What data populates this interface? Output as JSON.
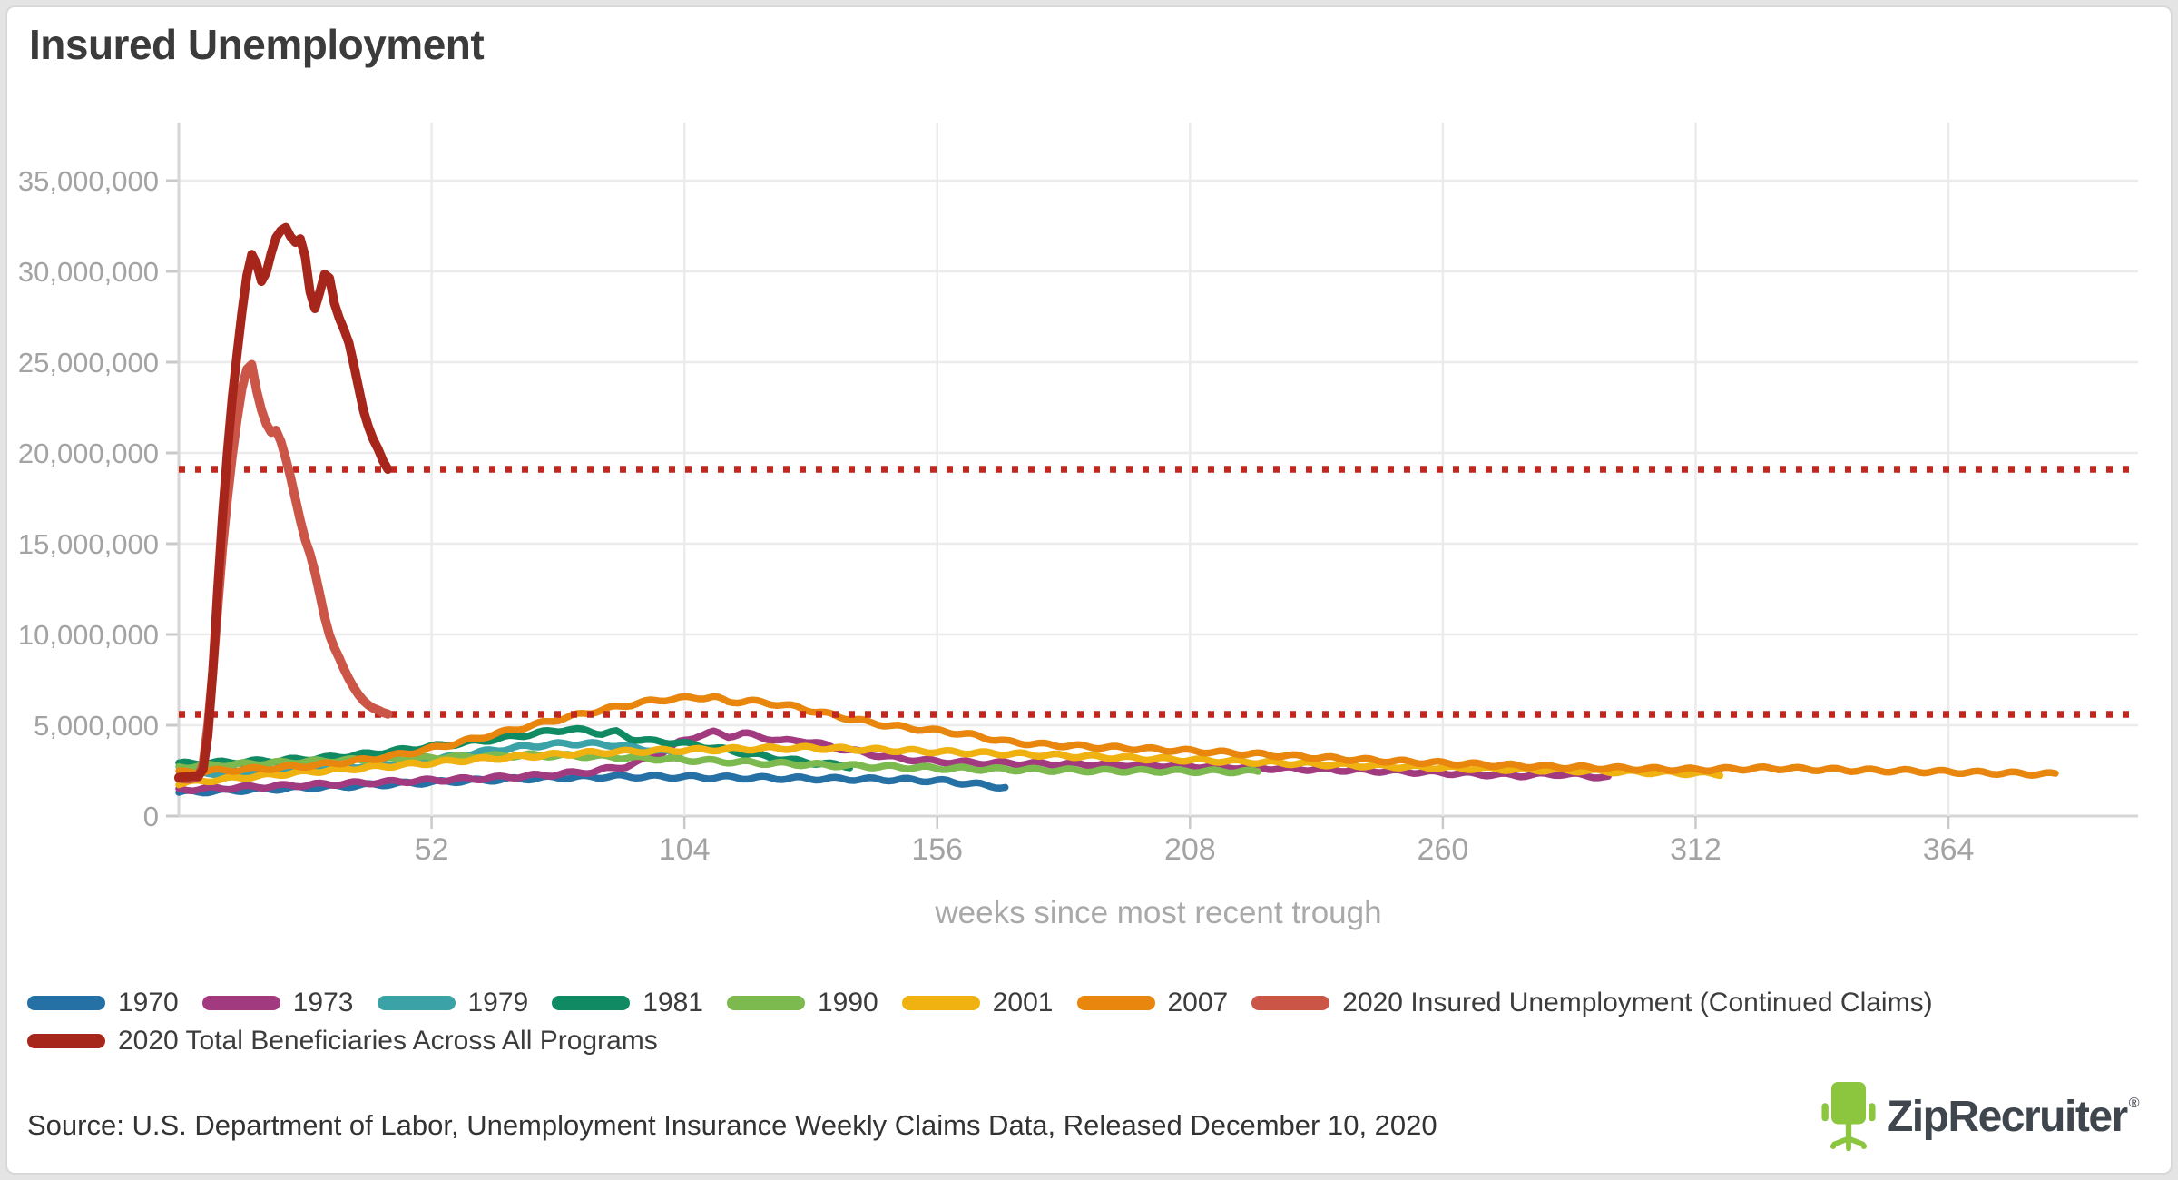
{
  "page": {
    "title": "Insured Unemployment"
  },
  "footer": {
    "source": "Source: U.S. Department of Labor, Unemployment Insurance Weekly Claims Data, Released December 10, 2020"
  },
  "branding": {
    "name": "ZipRecruiter",
    "registered": "®",
    "chair_color": "#8cc63e",
    "text_color": "#3f464d"
  },
  "colors": {
    "grid": "#ebebeb",
    "axis": "#d6d6d6",
    "tick": "#c9c9c9",
    "tick_label": "#a3a3a3",
    "reference_line": "#c2271f"
  },
  "legend": {
    "rows": [
      [
        {
          "label": "1970",
          "color": "#2571a5"
        },
        {
          "label": "1973",
          "color": "#a23a80"
        },
        {
          "label": "1979",
          "color": "#3ba3a8"
        },
        {
          "label": "1981",
          "color": "#108a62"
        },
        {
          "label": "1990",
          "color": "#7cb94e"
        },
        {
          "label": "2001",
          "color": "#efb211"
        },
        {
          "label": "2007",
          "color": "#e8860d"
        },
        {
          "label": "2020 Insured Unemployment (Continued Claims)",
          "color": "#cb5546"
        }
      ],
      [
        {
          "label": "2020 Total Beneficiaries Across All Programs",
          "color": "#a7261c"
        }
      ]
    ]
  },
  "chart_data": {
    "type": "line",
    "title": "Insured Unemployment",
    "xlabel": "weeks since most recent trough",
    "ylabel": "",
    "values_unit": "persons (millions)",
    "xlim": [
      0,
      403
    ],
    "ylim_millions": [
      0,
      38.2
    ],
    "x_ticks": [
      "52",
      "104",
      "156",
      "208",
      "260",
      "312",
      "364"
    ],
    "y_ticks": [
      {
        "v": 0,
        "label": "0"
      },
      {
        "v": 5,
        "label": "5,000,000"
      },
      {
        "v": 10,
        "label": "10,000,000"
      },
      {
        "v": 15,
        "label": "15,000,000"
      },
      {
        "v": 20,
        "label": "20,000,000"
      },
      {
        "v": 25,
        "label": "25,000,000"
      },
      {
        "v": 30,
        "label": "30,000,000"
      },
      {
        "v": 35,
        "label": "35,000,000"
      }
    ],
    "reference_lines_millions": [
      {
        "value": 19.1,
        "color": "#c2271f"
      },
      {
        "value": 5.6,
        "color": "#c2271f"
      }
    ],
    "series": [
      {
        "name": "1970",
        "color": "#2571a5",
        "width": 7.5,
        "wiggle": 0.09,
        "points": [
          [
            0,
            1.3
          ],
          [
            15,
            1.45
          ],
          [
            30,
            1.6
          ],
          [
            45,
            1.78
          ],
          [
            60,
            1.95
          ],
          [
            75,
            2.1
          ],
          [
            90,
            2.18
          ],
          [
            105,
            2.15
          ],
          [
            120,
            2.1
          ],
          [
            135,
            2.05
          ],
          [
            150,
            2.0
          ],
          [
            158,
            1.92
          ],
          [
            164,
            1.75
          ],
          [
            170,
            1.58
          ]
        ]
      },
      {
        "name": "1973",
        "color": "#a23a80",
        "width": 7.5,
        "wiggle": 0.09,
        "points": [
          [
            0,
            1.45
          ],
          [
            15,
            1.6
          ],
          [
            30,
            1.75
          ],
          [
            45,
            1.9
          ],
          [
            60,
            2.05
          ],
          [
            75,
            2.25
          ],
          [
            85,
            2.45
          ],
          [
            92,
            2.75
          ],
          [
            98,
            3.3
          ],
          [
            103,
            4.05
          ],
          [
            107,
            4.45
          ],
          [
            110,
            4.6
          ],
          [
            113,
            4.4
          ],
          [
            116,
            4.55
          ],
          [
            120,
            4.35
          ],
          [
            124,
            4.12
          ],
          [
            128,
            4.18
          ],
          [
            132,
            3.95
          ],
          [
            137,
            3.68
          ],
          [
            142,
            3.42
          ],
          [
            148,
            3.18
          ],
          [
            155,
            3.02
          ],
          [
            163,
            2.94
          ],
          [
            173,
            2.9
          ],
          [
            186,
            2.85
          ],
          [
            200,
            2.8
          ],
          [
            215,
            2.7
          ],
          [
            230,
            2.6
          ],
          [
            245,
            2.5
          ],
          [
            258,
            2.4
          ],
          [
            268,
            2.3
          ],
          [
            276,
            2.24
          ],
          [
            284,
            2.32
          ],
          [
            290,
            2.22
          ],
          [
            294,
            2.12
          ]
        ]
      },
      {
        "name": "1979",
        "color": "#3ba3a8",
        "width": 7.5,
        "wiggle": 0.09,
        "points": [
          [
            0,
            2.3
          ],
          [
            12,
            2.42
          ],
          [
            24,
            2.56
          ],
          [
            36,
            2.72
          ],
          [
            48,
            2.95
          ],
          [
            56,
            3.25
          ],
          [
            64,
            3.6
          ],
          [
            72,
            3.85
          ],
          [
            80,
            4.0
          ],
          [
            88,
            3.95
          ],
          [
            94,
            3.75
          ],
          [
            100,
            3.55
          ],
          [
            103,
            3.4
          ]
        ]
      },
      {
        "name": "1981",
        "color": "#108a62",
        "width": 7.5,
        "wiggle": 0.09,
        "points": [
          [
            0,
            2.88
          ],
          [
            10,
            2.96
          ],
          [
            20,
            3.06
          ],
          [
            30,
            3.2
          ],
          [
            40,
            3.45
          ],
          [
            48,
            3.7
          ],
          [
            56,
            3.95
          ],
          [
            64,
            4.2
          ],
          [
            70,
            4.42
          ],
          [
            76,
            4.65
          ],
          [
            80,
            4.78
          ],
          [
            84,
            4.7
          ],
          [
            87,
            4.55
          ],
          [
            90,
            4.62
          ],
          [
            93,
            4.28
          ],
          [
            97,
            4.12
          ],
          [
            102,
            4.06
          ],
          [
            107,
            3.88
          ],
          [
            113,
            3.62
          ],
          [
            119,
            3.36
          ],
          [
            125,
            3.1
          ],
          [
            131,
            2.92
          ],
          [
            138,
            2.74
          ]
        ]
      },
      {
        "name": "1990",
        "color": "#7cb94e",
        "width": 7.5,
        "wiggle": 0.09,
        "points": [
          [
            0,
            2.7
          ],
          [
            12,
            2.85
          ],
          [
            24,
            2.98
          ],
          [
            36,
            3.08
          ],
          [
            48,
            3.18
          ],
          [
            60,
            3.28
          ],
          [
            72,
            3.35
          ],
          [
            84,
            3.3
          ],
          [
            96,
            3.18
          ],
          [
            108,
            3.05
          ],
          [
            120,
            2.92
          ],
          [
            132,
            2.82
          ],
          [
            144,
            2.72
          ],
          [
            158,
            2.63
          ],
          [
            172,
            2.56
          ],
          [
            188,
            2.5
          ],
          [
            204,
            2.48
          ],
          [
            222,
            2.45
          ]
        ]
      },
      {
        "name": "2001",
        "color": "#efb211",
        "width": 7.5,
        "wiggle": 0.09,
        "points": [
          [
            0,
            1.8
          ],
          [
            12,
            2.1
          ],
          [
            24,
            2.38
          ],
          [
            36,
            2.62
          ],
          [
            48,
            2.85
          ],
          [
            60,
            3.1
          ],
          [
            72,
            3.3
          ],
          [
            84,
            3.48
          ],
          [
            96,
            3.58
          ],
          [
            108,
            3.65
          ],
          [
            120,
            3.72
          ],
          [
            130,
            3.76
          ],
          [
            140,
            3.68
          ],
          [
            152,
            3.58
          ],
          [
            164,
            3.48
          ],
          [
            176,
            3.38
          ],
          [
            190,
            3.25
          ],
          [
            204,
            3.12
          ],
          [
            218,
            3.0
          ],
          [
            232,
            2.88
          ],
          [
            246,
            2.76
          ],
          [
            260,
            2.66
          ],
          [
            274,
            2.58
          ],
          [
            288,
            2.5
          ],
          [
            300,
            2.42
          ],
          [
            308,
            2.38
          ],
          [
            317,
            2.32
          ]
        ]
      },
      {
        "name": "2007",
        "color": "#e8860d",
        "width": 7.5,
        "wiggle": 0.09,
        "points": [
          [
            0,
            2.4
          ],
          [
            10,
            2.52
          ],
          [
            20,
            2.65
          ],
          [
            30,
            2.85
          ],
          [
            40,
            3.15
          ],
          [
            48,
            3.5
          ],
          [
            56,
            3.95
          ],
          [
            64,
            4.45
          ],
          [
            72,
            4.95
          ],
          [
            80,
            5.45
          ],
          [
            88,
            5.9
          ],
          [
            95,
            6.25
          ],
          [
            101,
            6.45
          ],
          [
            106,
            6.52
          ],
          [
            110,
            6.55
          ],
          [
            113,
            6.28
          ],
          [
            117,
            6.34
          ],
          [
            122,
            6.2
          ],
          [
            127,
            6.0
          ],
          [
            132,
            5.7
          ],
          [
            137,
            5.42
          ],
          [
            142,
            5.16
          ],
          [
            147,
            4.95
          ],
          [
            152,
            4.8
          ],
          [
            158,
            4.65
          ],
          [
            164,
            4.42
          ],
          [
            170,
            4.1
          ],
          [
            177,
            3.95
          ],
          [
            185,
            3.85
          ],
          [
            193,
            3.76
          ],
          [
            202,
            3.66
          ],
          [
            212,
            3.54
          ],
          [
            222,
            3.4
          ],
          [
            232,
            3.26
          ],
          [
            242,
            3.12
          ],
          [
            252,
            3.0
          ],
          [
            262,
            2.9
          ],
          [
            272,
            2.8
          ],
          [
            282,
            2.72
          ],
          [
            292,
            2.66
          ],
          [
            302,
            2.6
          ],
          [
            312,
            2.56
          ],
          [
            320,
            2.6
          ],
          [
            328,
            2.64
          ],
          [
            336,
            2.58
          ],
          [
            346,
            2.52
          ],
          [
            356,
            2.48
          ],
          [
            366,
            2.42
          ],
          [
            376,
            2.36
          ],
          [
            386,
            2.3
          ]
        ]
      },
      {
        "name": "2020 Insured Unemployment (Continued Claims)",
        "color": "#cb5546",
        "width": 10,
        "wiggle": 0.05,
        "points": [
          [
            0,
            2.1
          ],
          [
            2,
            2.08
          ],
          [
            4,
            2.12
          ],
          [
            5,
            2.8
          ],
          [
            6,
            5.0
          ],
          [
            7,
            8.0
          ],
          [
            8,
            11.5
          ],
          [
            9,
            14.8
          ],
          [
            10,
            17.5
          ],
          [
            11,
            19.8
          ],
          [
            12,
            21.8
          ],
          [
            13,
            23.5
          ],
          [
            14,
            24.6
          ],
          [
            15,
            24.9
          ],
          [
            16,
            23.5
          ],
          [
            17,
            22.4
          ],
          [
            18,
            21.6
          ],
          [
            19,
            21.1
          ],
          [
            20,
            21.2
          ],
          [
            21,
            20.6
          ],
          [
            22,
            19.7
          ],
          [
            23,
            18.7
          ],
          [
            24,
            17.5
          ],
          [
            25,
            16.3
          ],
          [
            26,
            15.2
          ],
          [
            27,
            14.4
          ],
          [
            28,
            13.4
          ],
          [
            29,
            12.2
          ],
          [
            30,
            11.0
          ],
          [
            31,
            10.0
          ],
          [
            32,
            9.3
          ],
          [
            33,
            8.7
          ],
          [
            34,
            8.05
          ],
          [
            35,
            7.5
          ],
          [
            36,
            7.05
          ],
          [
            37,
            6.7
          ],
          [
            38,
            6.4
          ],
          [
            39,
            6.15
          ],
          [
            40,
            5.95
          ],
          [
            41,
            5.8
          ],
          [
            42,
            5.65
          ],
          [
            43,
            5.58
          ]
        ]
      },
      {
        "name": "2020 Total Beneficiaries Across All Programs",
        "color": "#a7261c",
        "width": 10,
        "wiggle": 0.05,
        "points": [
          [
            0,
            2.15
          ],
          [
            2,
            2.12
          ],
          [
            4,
            2.18
          ],
          [
            5,
            2.6
          ],
          [
            6,
            4.5
          ],
          [
            7,
            8.0
          ],
          [
            8,
            12.5
          ],
          [
            9,
            16.5
          ],
          [
            10,
            20.0
          ],
          [
            11,
            23.0
          ],
          [
            12,
            25.5
          ],
          [
            13,
            27.8
          ],
          [
            14,
            29.8
          ],
          [
            15,
            30.95
          ],
          [
            16,
            30.4
          ],
          [
            17,
            29.4
          ],
          [
            18,
            29.9
          ],
          [
            19,
            31.0
          ],
          [
            20,
            31.9
          ],
          [
            21,
            32.3
          ],
          [
            22,
            32.45
          ],
          [
            23,
            31.9
          ],
          [
            24,
            31.55
          ],
          [
            25,
            31.75
          ],
          [
            26,
            30.8
          ],
          [
            27,
            28.9
          ],
          [
            28,
            28.0
          ],
          [
            29,
            28.9
          ],
          [
            30,
            29.85
          ],
          [
            31,
            29.6
          ],
          [
            32,
            28.2
          ],
          [
            33,
            27.4
          ],
          [
            34,
            26.8
          ],
          [
            35,
            26.1
          ],
          [
            36,
            24.9
          ],
          [
            37,
            23.6
          ],
          [
            38,
            22.3
          ],
          [
            39,
            21.4
          ],
          [
            40,
            20.7
          ],
          [
            41,
            20.2
          ],
          [
            42,
            19.6
          ],
          [
            43,
            19.15
          ]
        ]
      }
    ]
  }
}
